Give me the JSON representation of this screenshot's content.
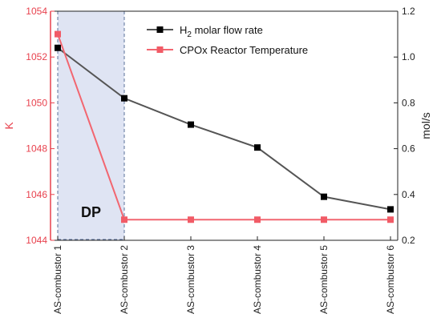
{
  "chart_data": {
    "type": "line",
    "categories": [
      "AS-combustor 1",
      "AS-combustor 2",
      "AS-combustor 3",
      "AS-combustor 4",
      "AS-combustor 5",
      "AS-combustor 6"
    ],
    "y_left": {
      "label": "K",
      "range": [
        1044,
        1054
      ],
      "ticks": [
        "1044",
        "1046",
        "1048",
        "1050",
        "1052",
        "1054"
      ]
    },
    "y_right": {
      "label": "mol/s",
      "range": [
        0.2,
        1.2
      ],
      "ticks": [
        "0.2",
        "0.4",
        "0.6",
        "0.8",
        "1.0",
        "1.2"
      ]
    },
    "series": [
      {
        "name_prefix": "H",
        "name_sub": "2",
        "name_suffix": " molar flow rate",
        "axis": "right",
        "color": "#555555",
        "marker_color": "#000000",
        "values": [
          1.04,
          0.82,
          0.705,
          0.605,
          0.39,
          0.335
        ]
      },
      {
        "name": "CPOx Reactor Temperature",
        "axis": "left",
        "color": "#f26670",
        "marker_color": "#f15b66",
        "values": [
          1053.0,
          1044.9,
          1044.9,
          1044.9,
          1044.9,
          1044.9
        ]
      }
    ],
    "shaded_region": {
      "label": "DP",
      "from_category": 0,
      "to_category": 1,
      "fill": "#dfe4f3"
    },
    "colors": {
      "left_axis": "#e8414d",
      "right_axis": "#222222"
    },
    "grid": false,
    "legend_position": "top-right"
  }
}
